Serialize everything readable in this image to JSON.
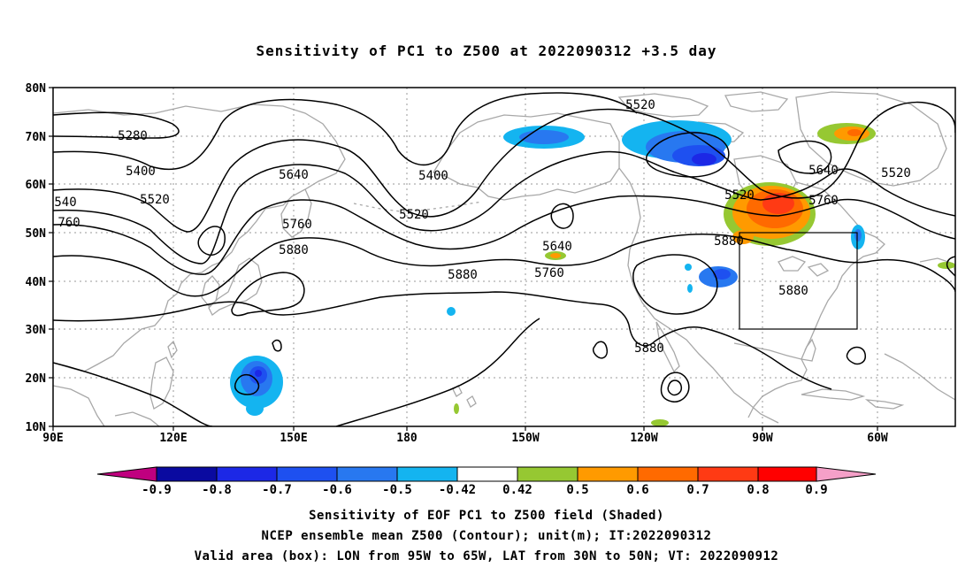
{
  "title": "Sensitivity of PC1 to Z500 at 2022090312 +3.5 day",
  "lat_labels": [
    "80N",
    "70N",
    "60N",
    "50N",
    "40N",
    "30N",
    "20N",
    "10N"
  ],
  "lon_labels": [
    "90E",
    "120E",
    "150E",
    "180",
    "150W",
    "120W",
    "90W",
    "60W"
  ],
  "contour_labels": {
    "c5280": "5280",
    "c5400a": "5400",
    "c5520a": "5520",
    "c5640a": "5640",
    "c5760a": "5760",
    "c5880a": "5880",
    "c5400b": "5400",
    "c5520b": "5520",
    "c5520c": "5520",
    "c5640b": "5640",
    "c5880b": "5880",
    "c5760b": "5760",
    "c5880c": "5880",
    "c5520d": "5520",
    "c5640c": "5640",
    "c5520e": "5520",
    "c5760c": "5760",
    "c5880d": "5880",
    "c5880e": "5880",
    "c540": "540",
    "c760": "760"
  },
  "colorbar": {
    "labels": [
      "-0.9",
      "-0.8",
      "-0.7",
      "-0.6",
      "-0.5",
      "-0.42",
      "0.42",
      "0.5",
      "0.6",
      "0.7",
      "0.8",
      "0.9"
    ],
    "colors": {
      "low_tri": "#c0007f",
      "b1": "#0a0aa0",
      "b2": "#1c28e6",
      "b3": "#1e50f0",
      "b4": "#2878f0",
      "b5": "#14b4f0",
      "b6": "#ffffff",
      "b7": "#96c832",
      "b8": "#ff9a00",
      "b9": "#ff6a00",
      "b10": "#ff3a14",
      "b11": "#ff0000",
      "high_tri": "#f5a0c8"
    }
  },
  "box": {
    "lon_from": "95W",
    "lon_to": "65W",
    "lat_from": "30N",
    "lat_to": "50N"
  },
  "captions": {
    "line1": "Sensitivity of EOF PC1 to Z500 field (Shaded)",
    "line2": "NCEP ensemble mean Z500 (Contour); unit(m); IT:2022090312",
    "line3": "Valid area (box): LON from 95W to 65W, LAT from 30N to 50N; VT: 2022090912"
  }
}
